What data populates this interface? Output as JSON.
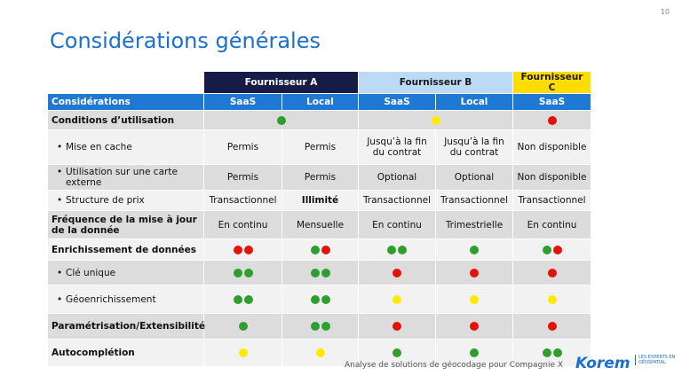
{
  "page_number": "10",
  "title": "Considérations générales",
  "table": {
    "groups": [
      {
        "text": "Fournisseur A",
        "span": 2,
        "bg": "#161b48",
        "fg": "#ffffff"
      },
      {
        "text": "Fournisseur B",
        "span": 2,
        "bg": "#bcdaf5",
        "fg": "#1a1a1a"
      },
      {
        "text": "Fournisseur C",
        "span": 1,
        "bg": "#ffdd00",
        "fg": "#1a1a1a"
      }
    ],
    "header": [
      "Considérations",
      "SaaS",
      "Local",
      "SaaS",
      "Local",
      "SaaS"
    ],
    "rows": [
      {
        "label": "Conditions d’utilisation",
        "bold": true,
        "cells": [
          {
            "dots": [
              "green"
            ],
            "span": 2
          },
          {
            "dots": [
              "yellow"
            ],
            "span": 2
          },
          {
            "dots": [
              "red"
            ]
          }
        ]
      },
      {
        "label": "Mise en cache",
        "bullet": true,
        "cells": [
          {
            "text": "Permis"
          },
          {
            "text": "Permis"
          },
          {
            "text": "Jusqu’à la fin du contrat"
          },
          {
            "text": "Jusqu’à la fin du contrat"
          },
          {
            "text": "Non disponible"
          }
        ]
      },
      {
        "label": "Utilisation sur une carte externe",
        "bullet": true,
        "cells": [
          {
            "text": "Permis"
          },
          {
            "text": "Permis"
          },
          {
            "text": "Optional"
          },
          {
            "text": "Optional"
          },
          {
            "text": "Non disponible"
          }
        ]
      },
      {
        "label": "Structure de prix",
        "bullet": true,
        "cells": [
          {
            "text": "Transactionnel"
          },
          {
            "text": "Illimité",
            "bold": true
          },
          {
            "text": "Transactionnel"
          },
          {
            "text": "Transactionnel"
          },
          {
            "text": "Transactionnel"
          }
        ]
      },
      {
        "label": "Fréquence de la mise à jour de la donnée",
        "bold": true,
        "cells": [
          {
            "text": "En continu"
          },
          {
            "text": "Mensuelle"
          },
          {
            "text": "En continu"
          },
          {
            "text": "Trimestrielle"
          },
          {
            "text": "En continu"
          }
        ]
      },
      {
        "label": "Enrichissement de données",
        "bold": true,
        "cells": [
          {
            "dots": [
              "red",
              "red"
            ]
          },
          {
            "dots": [
              "green",
              "red"
            ]
          },
          {
            "dots": [
              "green",
              "green"
            ]
          },
          {
            "dots": [
              "green"
            ]
          },
          {
            "dots": [
              "green",
              "red"
            ]
          }
        ]
      },
      {
        "label": "Clé unique",
        "bullet": true,
        "cells": [
          {
            "dots": [
              "green",
              "green"
            ]
          },
          {
            "dots": [
              "green",
              "green"
            ]
          },
          {
            "dots": [
              "red"
            ]
          },
          {
            "dots": [
              "red"
            ]
          },
          {
            "dots": [
              "red"
            ]
          }
        ]
      },
      {
        "label": "Géoenrichissement",
        "bullet": true,
        "cells": [
          {
            "dots": [
              "green",
              "green"
            ]
          },
          {
            "dots": [
              "green",
              "green"
            ]
          },
          {
            "dots": [
              "yellow"
            ]
          },
          {
            "dots": [
              "yellow"
            ]
          },
          {
            "dots": [
              "yellow"
            ]
          }
        ]
      },
      {
        "label": "Paramétrisation/Extensibilité",
        "bold": true,
        "cells": [
          {
            "dots": [
              "green"
            ]
          },
          {
            "dots": [
              "green",
              "green"
            ]
          },
          {
            "dots": [
              "red"
            ]
          },
          {
            "dots": [
              "red"
            ]
          },
          {
            "dots": [
              "red"
            ]
          }
        ]
      },
      {
        "label": "Autocomplétion",
        "bold": true,
        "cells": [
          {
            "dots": [
              "yellow"
            ]
          },
          {
            "dots": [
              "yellow"
            ]
          },
          {
            "dots": [
              "green"
            ]
          },
          {
            "dots": [
              "green"
            ]
          },
          {
            "dots": [
              "green",
              "green"
            ]
          }
        ]
      }
    ]
  },
  "footer": {
    "caption": "Analyse de solutions de géocodage pour Compagnie X",
    "logo": "Korem",
    "tagline": "LES EXPERTS EN GÉOSPATIAL"
  }
}
